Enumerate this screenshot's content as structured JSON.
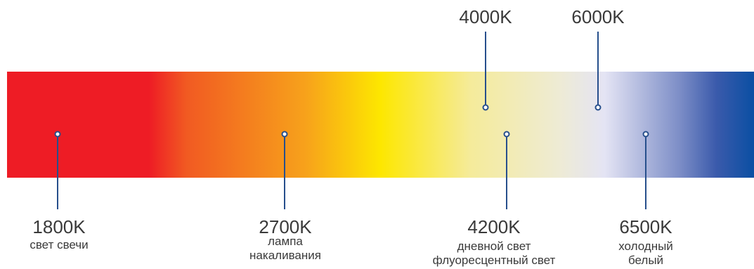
{
  "diagram": {
    "colors": {
      "warm_red": "#ee1c25",
      "orange": "#f7a21b",
      "yellow": "#fde700",
      "pale": "#eeebd5",
      "blue": "#0a4fa3",
      "marker": "#274f8c"
    },
    "top_markers": [
      {
        "temperature": "4000K"
      },
      {
        "temperature": "6000K"
      }
    ],
    "bottom_markers": [
      {
        "temperature": "1800K",
        "description": [
          "свет свечи"
        ]
      },
      {
        "temperature": "2700K",
        "description": [
          "лампа",
          "накаливания"
        ]
      },
      {
        "temperature": "4200K",
        "description": [
          "дневной свет",
          "флуоресцентный свет"
        ]
      },
      {
        "temperature": "6500K",
        "description": [
          "холодный",
          "белый"
        ]
      }
    ]
  }
}
